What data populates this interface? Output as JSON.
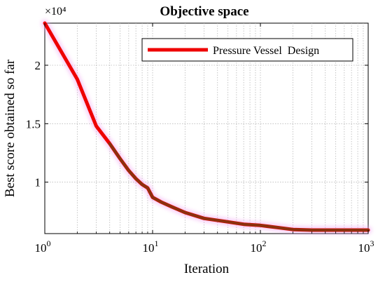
{
  "colors": {
    "line": "#ee0000",
    "line_dark_overlay": "#7a3a10",
    "glow": "#f0a0f0",
    "grid": "#b8b8b8",
    "axis": "#000000"
  },
  "chart_data": {
    "type": "line",
    "title": "Objective space",
    "xlabel": "Iteration",
    "ylabel": "Best score obtained so far",
    "x_scale": "log",
    "xlim": [
      1,
      1000
    ],
    "ylim": [
      5600,
      23600
    ],
    "y_multiplier_label": "×10⁴",
    "x_tick_bases": [
      "10",
      "10",
      "10",
      "10"
    ],
    "x_tick_exponents": [
      "0",
      "1",
      "2",
      "3"
    ],
    "x_tick_values": [
      1,
      10,
      100,
      1000
    ],
    "y_ticks": [
      {
        "value": 10000,
        "label": "1"
      },
      {
        "value": 15000,
        "label": "1.5"
      },
      {
        "value": 20000,
        "label": "2"
      }
    ],
    "grid": true,
    "legend": {
      "position": "top-right",
      "entries": [
        "Pressure Vessel  Design"
      ]
    },
    "series": [
      {
        "name": "Pressure Vessel  Design",
        "x": [
          1,
          2,
          3,
          4,
          5,
          6,
          7,
          8,
          9,
          10,
          12,
          15,
          20,
          30,
          50,
          70,
          100,
          150,
          200,
          300,
          500,
          1000
        ],
        "y": [
          23600,
          18800,
          14800,
          13300,
          12000,
          11000,
          10300,
          9800,
          9500,
          8700,
          8300,
          7900,
          7400,
          6900,
          6600,
          6400,
          6300,
          6100,
          5950,
          5900,
          5900,
          5900
        ]
      }
    ]
  }
}
